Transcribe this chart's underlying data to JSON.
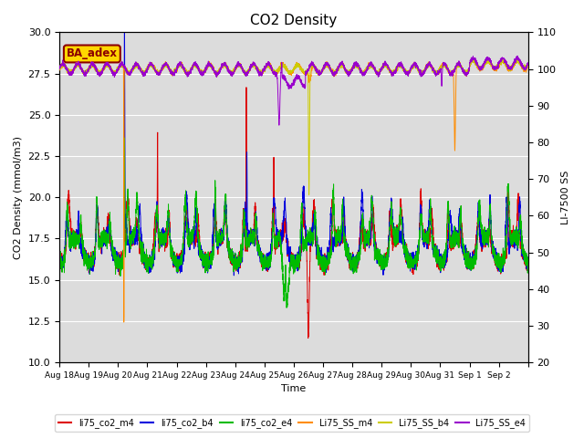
{
  "title": "CO2 Density",
  "xlabel": "Time",
  "ylabel_left": "CO2 Density (mmol/m3)",
  "ylabel_right": "LI-7500 SS",
  "ylim_left": [
    10,
    30
  ],
  "ylim_right": [
    20,
    110
  ],
  "annotation_text": "BA_adex",
  "annotation_color": "#8B0000",
  "annotation_bg": "#FFD700",
  "series_colors": {
    "li75_co2_m4": "#DD0000",
    "li75_co2_b4": "#0000DD",
    "li75_co2_e4": "#00BB00",
    "Li75_SS_m4": "#FF8C00",
    "Li75_SS_b4": "#CCCC00",
    "Li75_SS_e4": "#9900CC"
  },
  "n_days": 16,
  "bg_color": "#DCDCDC",
  "grid_color": "white"
}
